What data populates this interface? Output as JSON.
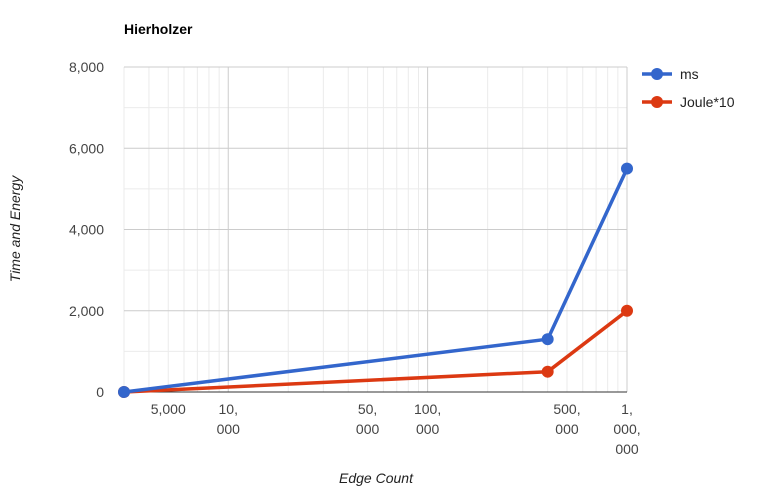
{
  "chart_data": {
    "type": "line",
    "title": "Hierholzer",
    "xlabel": "Edge Count",
    "ylabel": "Time and Energy",
    "x_scale": "log",
    "xlim": [
      3000,
      1000000
    ],
    "ylim": [
      0,
      8000
    ],
    "grid": true,
    "legend_position": "right",
    "y_ticks": [
      {
        "value": 0,
        "label": "0"
      },
      {
        "value": 2000,
        "label": "2,000"
      },
      {
        "value": 4000,
        "label": "4,000"
      },
      {
        "value": 6000,
        "label": "6,000"
      },
      {
        "value": 8000,
        "label": "8,000"
      }
    ],
    "x_ticks": [
      {
        "value": 5000,
        "lines": [
          "5,000"
        ]
      },
      {
        "value": 10000,
        "lines": [
          "10,",
          "000"
        ]
      },
      {
        "value": 50000,
        "lines": [
          "50,",
          "000"
        ]
      },
      {
        "value": 100000,
        "lines": [
          "100,",
          "000"
        ]
      },
      {
        "value": 500000,
        "lines": [
          "500,",
          "000"
        ]
      },
      {
        "value": 1000000,
        "lines": [
          "1,",
          "000,",
          "000"
        ]
      }
    ],
    "x": [
      3000,
      400000,
      1000000
    ],
    "series": [
      {
        "name": "ms",
        "color": "#3366cc",
        "values": [
          0,
          1300,
          5500
        ]
      },
      {
        "name": "Joule*10",
        "color": "#dc3912",
        "values": [
          0,
          500,
          2000
        ]
      }
    ]
  }
}
